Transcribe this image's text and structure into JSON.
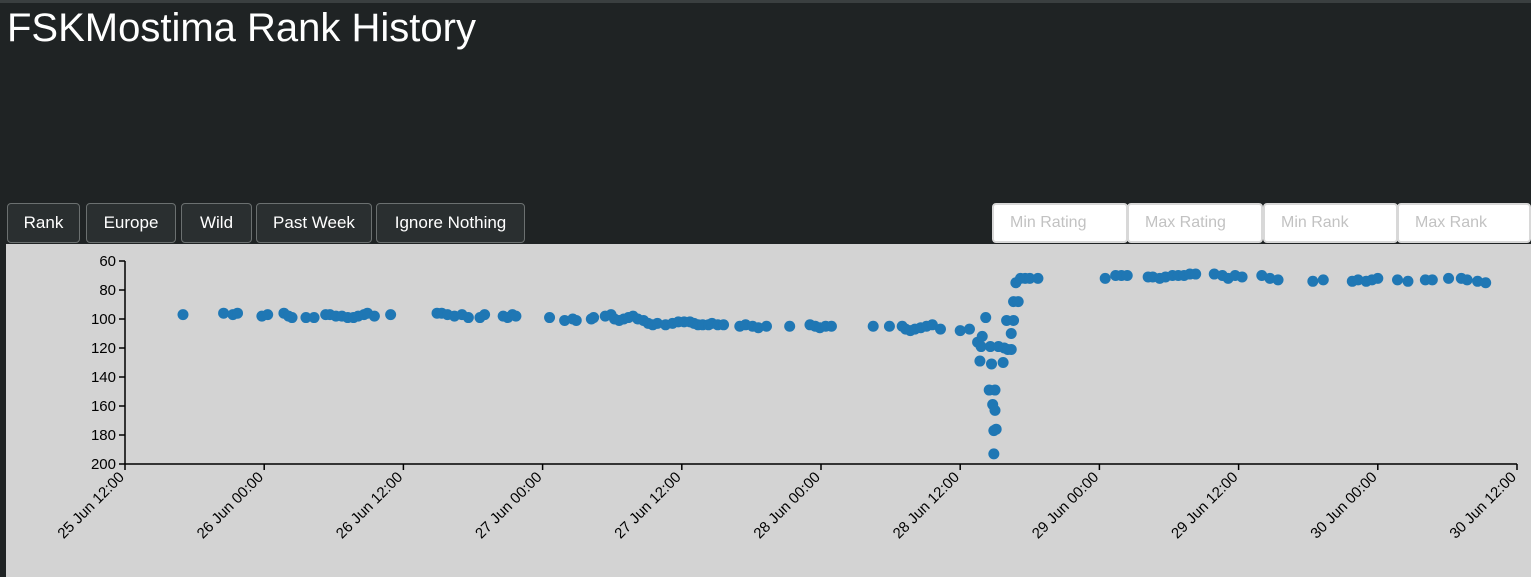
{
  "header": {
    "title": "FSKMostima Rank History"
  },
  "buttons": [
    "Rank",
    "Europe",
    "Wild",
    "Past Week",
    "Ignore Nothing"
  ],
  "inputs": [
    "Min Rating",
    "Max Rating",
    "Min Rank",
    "Max Rank"
  ],
  "chart_data": {
    "type": "scatter",
    "color": "#1f77b4",
    "y_reversed": true,
    "xlim": [
      "25 Jun 12:00",
      "30 Jun 12:00"
    ],
    "xticks": [
      "25 Jun 12:00",
      "26 Jun 00:00",
      "26 Jun 12:00",
      "27 Jun 00:00",
      "27 Jun 12:00",
      "28 Jun 00:00",
      "28 Jun 12:00",
      "29 Jun 00:00",
      "29 Jun 12:00",
      "30 Jun 00:00",
      "30 Jun 12:00"
    ],
    "ylim": [
      60,
      200
    ],
    "yticks": [
      60,
      80,
      100,
      120,
      140,
      160,
      180,
      200
    ],
    "x": [
      "25 Jun 17:00",
      "25 Jun 20:30",
      "25 Jun 21:18",
      "25 Jun 21:42",
      "25 Jun 23:48",
      "26 Jun 00:18",
      "26 Jun 01:42",
      "26 Jun 02:06",
      "26 Jun 02:24",
      "26 Jun 03:36",
      "26 Jun 04:18",
      "26 Jun 05:18",
      "26 Jun 05:40",
      "26 Jun 06:11",
      "26 Jun 06:42",
      "26 Jun 07:12",
      "26 Jun 07:42",
      "26 Jun 08:06",
      "26 Jun 08:36",
      "26 Jun 08:54",
      "26 Jun 09:30",
      "26 Jun 10:54",
      "26 Jun 14:54",
      "26 Jun 15:18",
      "26 Jun 15:48",
      "26 Jun 16:24",
      "26 Jun 17:03",
      "26 Jun 17:36",
      "26 Jun 18:36",
      "26 Jun 19:00",
      "26 Jun 20:36",
      "26 Jun 21:00",
      "26 Jun 21:24",
      "26 Jun 21:42",
      "27 Jun 00:36",
      "27 Jun 01:54",
      "27 Jun 02:36",
      "27 Jun 02:54",
      "27 Jun 04:12",
      "27 Jun 04:24",
      "27 Jun 05:24",
      "27 Jun 05:54",
      "27 Jun 06:12",
      "27 Jun 06:36",
      "27 Jun 07:00",
      "27 Jun 07:24",
      "27 Jun 07:48",
      "27 Jun 08:12",
      "27 Jun 08:42",
      "27 Jun 09:06",
      "27 Jun 09:30",
      "27 Jun 09:54",
      "27 Jun 10:36",
      "27 Jun 11:12",
      "27 Jun 11:42",
      "27 Jun 12:12",
      "27 Jun 12:42",
      "27 Jun 13:03",
      "27 Jun 13:24",
      "27 Jun 13:48",
      "27 Jun 14:18",
      "27 Jun 14:36",
      "27 Jun 15:06",
      "27 Jun 15:36",
      "27 Jun 17:00",
      "27 Jun 17:30",
      "27 Jun 18:06",
      "27 Jun 18:36",
      "27 Jun 19:18",
      "27 Jun 21:18",
      "27 Jun 23:03",
      "27 Jun 23:30",
      "27 Jun 23:54",
      "28 Jun 00:24",
      "28 Jun 00:54",
      "28 Jun 04:30",
      "28 Jun 05:54",
      "28 Jun 07:00",
      "28 Jun 07:18",
      "28 Jun 07:42",
      "28 Jun 08:06",
      "28 Jun 08:36",
      "28 Jun 09:06",
      "28 Jun 09:36",
      "28 Jun 10:18",
      "28 Jun 12:00",
      "28 Jun 12:48",
      "28 Jun 13:30",
      "28 Jun 13:42",
      "28 Jun 13:48",
      "28 Jun 13:54",
      "28 Jun 14:12",
      "28 Jun 14:30",
      "28 Jun 14:36",
      "28 Jun 14:42",
      "28 Jun 14:48",
      "28 Jun 14:54",
      "28 Jun 14:54",
      "28 Jun 15:00",
      "28 Jun 15:00",
      "28 Jun 15:06",
      "28 Jun 15:18",
      "28 Jun 15:42",
      "28 Jun 15:48",
      "28 Jun 16:00",
      "28 Jun 16:06",
      "28 Jun 16:24",
      "28 Jun 16:24",
      "28 Jun 16:36",
      "28 Jun 16:36",
      "28 Jun 16:48",
      "28 Jun 17:00",
      "28 Jun 17:12",
      "28 Jun 17:36",
      "28 Jun 18:00",
      "28 Jun 18:42",
      "29 Jun 00:30",
      "29 Jun 01:24",
      "29 Jun 01:54",
      "29 Jun 02:24",
      "29 Jun 04:12",
      "29 Jun 04:36",
      "29 Jun 05:12",
      "29 Jun 05:42",
      "29 Jun 06:18",
      "29 Jun 06:48",
      "29 Jun 07:18",
      "29 Jun 07:48",
      "29 Jun 08:18",
      "29 Jun 09:54",
      "29 Jun 10:36",
      "29 Jun 11:06",
      "29 Jun 11:42",
      "29 Jun 12:18",
      "29 Jun 14:00",
      "29 Jun 14:42",
      "29 Jun 15:24",
      "29 Jun 18:24",
      "29 Jun 19:18",
      "29 Jun 21:48",
      "29 Jun 22:18",
      "29 Jun 23:00",
      "29 Jun 23:30",
      "30 Jun 00:00",
      "30 Jun 01:42",
      "30 Jun 02:36",
      "30 Jun 04:06",
      "30 Jun 04:42",
      "30 Jun 06:06",
      "30 Jun 07:12",
      "30 Jun 07:42",
      "30 Jun 08:36",
      "30 Jun 09:18"
    ],
    "values": [
      97,
      96,
      97,
      96,
      98,
      97,
      96,
      98,
      99,
      99,
      99,
      97,
      97,
      98,
      98,
      99,
      99,
      98,
      97,
      96,
      98,
      97,
      96,
      96,
      97,
      98,
      97,
      99,
      99,
      97,
      98,
      99,
      97,
      98,
      99,
      101,
      100,
      101,
      100,
      99,
      98,
      97,
      100,
      101,
      100,
      99,
      98,
      100,
      101,
      103,
      104,
      103,
      104,
      103,
      102,
      102,
      102,
      103,
      104,
      104,
      104,
      103,
      104,
      104,
      105,
      104,
      105,
      106,
      105,
      105,
      104,
      105,
      106,
      105,
      105,
      105,
      105,
      105,
      107,
      108,
      107,
      106,
      105,
      104,
      107,
      108,
      107,
      116,
      129,
      119,
      112,
      99,
      149,
      119,
      131,
      159,
      177,
      193,
      149,
      163,
      176,
      119,
      130,
      120,
      101,
      121,
      110,
      121,
      101,
      88,
      75,
      88,
      72,
      72,
      72,
      72,
      72,
      70,
      70,
      70,
      71,
      71,
      72,
      71,
      70,
      70,
      70,
      69,
      69,
      69,
      70,
      72,
      70,
      71,
      70,
      72,
      73,
      74,
      73,
      74,
      73,
      74,
      73,
      72,
      73,
      74,
      73,
      73,
      72,
      72,
      73,
      74,
      75
    ]
  }
}
